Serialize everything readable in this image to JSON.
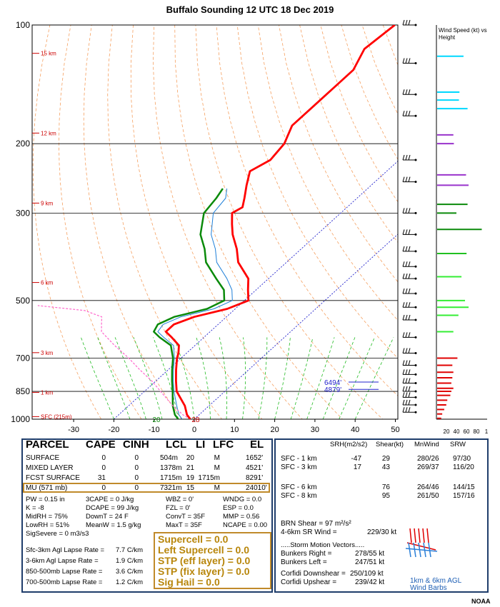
{
  "chart_data": {
    "type": "skew-t sounding",
    "title": "Buffalo Sounding  12 UTC  18 Dec 2019",
    "x_ticks": [
      -30,
      -20,
      -10,
      0,
      10,
      20,
      30,
      40,
      50
    ],
    "pressure_ticks": [
      100,
      200,
      300,
      500,
      700,
      850,
      1000
    ],
    "pressure_range": [
      1000,
      100
    ],
    "temperature_range": [
      -40,
      50
    ],
    "height_labels": [
      "15 km",
      "12 km",
      "9 km",
      "6 km",
      "3 km",
      "1 km",
      "SFC (215m)"
    ],
    "height_label_pressures": [
      118,
      188,
      283,
      450,
      678,
      855,
      985
    ],
    "temperature": [
      {
        "p": 1000,
        "t": -1
      },
      {
        "p": 975,
        "t": -3
      },
      {
        "p": 925,
        "t": -6
      },
      {
        "p": 850,
        "t": -12
      },
      {
        "p": 800,
        "t": -15
      },
      {
        "p": 750,
        "t": -18
      },
      {
        "p": 700,
        "t": -21
      },
      {
        "p": 680,
        "t": -22
      },
      {
        "p": 650,
        "t": -24
      },
      {
        "p": 620,
        "t": -28
      },
      {
        "p": 600,
        "t": -31
      },
      {
        "p": 575,
        "t": -31
      },
      {
        "p": 550,
        "t": -28
      },
      {
        "p": 525,
        "t": -22
      },
      {
        "p": 500,
        "t": -19
      },
      {
        "p": 470,
        "t": -22
      },
      {
        "p": 440,
        "t": -25
      },
      {
        "p": 400,
        "t": -32
      },
      {
        "p": 370,
        "t": -36
      },
      {
        "p": 340,
        "t": -41
      },
      {
        "p": 320,
        "t": -44
      },
      {
        "p": 300,
        "t": -47
      },
      {
        "p": 290,
        "t": -46
      },
      {
        "p": 275,
        "t": -48
      },
      {
        "p": 255,
        "t": -51
      },
      {
        "p": 235,
        "t": -54
      },
      {
        "p": 220,
        "t": -52
      },
      {
        "p": 200,
        "t": -53
      },
      {
        "p": 180,
        "t": -56
      },
      {
        "p": 160,
        "t": -56
      },
      {
        "p": 145,
        "t": -56
      },
      {
        "p": 130,
        "t": -56
      },
      {
        "p": 115,
        "t": -59
      },
      {
        "p": 100,
        "t": -58
      }
    ],
    "dewpoint": [
      {
        "p": 1000,
        "t": -4
      },
      {
        "p": 975,
        "t": -6
      },
      {
        "p": 925,
        "t": -9
      },
      {
        "p": 850,
        "t": -13
      },
      {
        "p": 800,
        "t": -16
      },
      {
        "p": 750,
        "t": -19
      },
      {
        "p": 700,
        "t": -22
      },
      {
        "p": 650,
        "t": -26
      },
      {
        "p": 620,
        "t": -31
      },
      {
        "p": 600,
        "t": -34
      },
      {
        "p": 575,
        "t": -35
      },
      {
        "p": 550,
        "t": -33
      },
      {
        "p": 525,
        "t": -27
      },
      {
        "p": 500,
        "t": -25
      },
      {
        "p": 470,
        "t": -28
      },
      {
        "p": 440,
        "t": -33
      },
      {
        "p": 400,
        "t": -40
      },
      {
        "p": 370,
        "t": -44
      },
      {
        "p": 340,
        "t": -49
      },
      {
        "p": 300,
        "t": -54
      },
      {
        "p": 275,
        "t": -55
      },
      {
        "p": 260,
        "t": -56
      }
    ],
    "parcel": [
      {
        "p": 1000,
        "t": -1
      },
      {
        "p": 975,
        "t": -4
      },
      {
        "p": 925,
        "t": -9
      },
      {
        "p": 850,
        "t": -16
      },
      {
        "p": 800,
        "t": -21
      },
      {
        "p": 750,
        "t": -27
      },
      {
        "p": 700,
        "t": -33
      },
      {
        "p": 650,
        "t": -40
      },
      {
        "p": 600,
        "t": -47
      },
      {
        "p": 575,
        "t": -49
      },
      {
        "p": 550,
        "t": -51
      },
      {
        "p": 530,
        "t": -57
      },
      {
        "p": 515,
        "t": -70
      }
    ],
    "surface_temp_label": "28",
    "surface_dew_label": "20",
    "storm_layers": [
      {
        "label": "6494'",
        "p": 805
      },
      {
        "label": "4879'",
        "p": 840
      }
    ],
    "wind_panel_title": "Wind Speed (kt) vs Height",
    "wind_axis_labels": [
      "20",
      "40",
      "60",
      "80",
      "1"
    ],
    "wind_profile": [
      {
        "p": 120,
        "v": 52,
        "c": "#00d8ff"
      },
      {
        "p": 148,
        "v": 44,
        "c": "#00d8ff"
      },
      {
        "p": 155,
        "v": 43,
        "c": "#00d8ff"
      },
      {
        "p": 163,
        "v": 60,
        "c": "#00d8ff"
      },
      {
        "p": 190,
        "v": 32,
        "c": "#9933cc"
      },
      {
        "p": 200,
        "v": 33,
        "c": "#9933cc"
      },
      {
        "p": 240,
        "v": 57,
        "c": "#9933cc"
      },
      {
        "p": 255,
        "v": 62,
        "c": "#9933cc"
      },
      {
        "p": 285,
        "v": 60,
        "c": "#0a8a0a"
      },
      {
        "p": 300,
        "v": 38,
        "c": "#0a8a0a"
      },
      {
        "p": 330,
        "v": 88,
        "c": "#0a8a0a"
      },
      {
        "p": 380,
        "v": 58,
        "c": "#20c020"
      },
      {
        "p": 435,
        "v": 48,
        "c": "#33ee33"
      },
      {
        "p": 500,
        "v": 55,
        "c": "#33ee33"
      },
      {
        "p": 520,
        "v": 62,
        "c": "#33ee33"
      },
      {
        "p": 545,
        "v": 42,
        "c": "#33ee33"
      },
      {
        "p": 600,
        "v": 32,
        "c": "#33ee33"
      },
      {
        "p": 700,
        "v": 40,
        "c": "#e00000"
      },
      {
        "p": 730,
        "v": 30,
        "c": "#e00000"
      },
      {
        "p": 760,
        "v": 32,
        "c": "#e00000"
      },
      {
        "p": 785,
        "v": 30,
        "c": "#e00000"
      },
      {
        "p": 810,
        "v": 28,
        "c": "#e00000"
      },
      {
        "p": 835,
        "v": 32,
        "c": "#e00000"
      },
      {
        "p": 850,
        "v": 28,
        "c": "#e00000"
      },
      {
        "p": 870,
        "v": 26,
        "c": "#e00000"
      },
      {
        "p": 895,
        "v": 20,
        "c": "#e00000"
      },
      {
        "p": 920,
        "v": 18,
        "c": "#e00000"
      },
      {
        "p": 945,
        "v": 14,
        "c": "#e00000"
      },
      {
        "p": 970,
        "v": 10,
        "c": "#e00000"
      },
      {
        "p": 995,
        "v": 8,
        "c": "#e00000"
      }
    ],
    "barb_pressures": [
      100,
      125,
      150,
      170,
      220,
      250,
      300,
      340,
      375,
      410,
      440,
      480,
      520,
      560,
      620,
      680,
      730,
      770,
      810,
      850,
      880,
      920,
      960
    ],
    "colors": {
      "temperature": "#ff0000",
      "dewpoint": "#0a8a0a",
      "parcel": "#ff66cc",
      "wetbulb": "#1e7fd8",
      "dry_adiabat": "#f5a060",
      "moist_adiabat": "#22bb22",
      "isotherm": "#2222cc",
      "storm": "#2222cc"
    }
  },
  "table": {
    "headers": [
      "PARCEL",
      "CAPE",
      "CINH",
      "LCL",
      "LI",
      "LFC",
      "EL"
    ],
    "rows": [
      [
        "SURFACE",
        "0",
        "0",
        "504m",
        "20",
        "M",
        "1652'"
      ],
      [
        "MIXED LAYER",
        "0",
        "0",
        "1378m",
        "21",
        "M",
        "4521'"
      ],
      [
        "FCST SURFACE",
        "31",
        "0",
        "1715m",
        "19",
        "1715m",
        "8291'"
      ],
      [
        "MU    (571 mb)",
        "0",
        "0",
        "7321m",
        "15",
        "M",
        "24010'"
      ]
    ]
  },
  "indices": {
    "col1": [
      "PW = 0.15 in",
      "K = -8",
      "MidRH = 75%",
      "LowRH = 51%",
      "SigSevere = 0 m3/s3"
    ],
    "col2": [
      "3CAPE = 0 J/kg",
      "DCAPE = 99 J/kg",
      "DownT = 24 F",
      "MeanW = 1.5 g/kg"
    ],
    "col3": [
      "WBZ = 0'",
      "FZL = 0'",
      "ConvT = 35F",
      "MaxT = 35F"
    ],
    "col4": [
      "WNDG = 0.0",
      "ESP = 0.0",
      "MMP = 0.56",
      "NCAPE = 0.00"
    ]
  },
  "lapse_rates": [
    [
      "Sfc-3km Agl Lapse Rate =",
      "7.7 C/km"
    ],
    [
      "3-6km Agl Lapse Rate =",
      "1.9 C/km"
    ],
    [
      "850-500mb Lapse Rate =",
      "3.6 C/km"
    ],
    [
      "700-500mb Lapse Rate =",
      "1.2 C/km"
    ]
  ],
  "severe": [
    "Supercell = 0.0",
    "Left Supercell = 0.0",
    "STP (eff layer) = 0.0",
    "STP (fix layer) = 0.0",
    "Sig Hail = 0.0"
  ],
  "kinematics": {
    "headers": [
      "SRH(m2/s2)",
      "Shear(kt)",
      "MnWind",
      "SRW"
    ],
    "rows": [
      [
        "SFC - 1 km",
        "-47",
        "29",
        "280/26",
        "97/30"
      ],
      [
        "SFC - 3 km",
        "17",
        "43",
        "269/37",
        "116/20"
      ],
      [
        "SFC - 6 km",
        "",
        "76",
        "264/46",
        "144/15"
      ],
      [
        "SFC - 8 km",
        "",
        "95",
        "261/50",
        "157/16"
      ]
    ],
    "brn_shear": "BRN Shear =  97 m²/s²",
    "sr_wind_label": "4-6km SR Wind =",
    "sr_wind_value": "229/30 kt",
    "storm_motion_title": ".....Storm Motion Vectors.....",
    "bunkers_right_label": "Bunkers Right =",
    "bunkers_right_value": "278/55 kt",
    "bunkers_left_label": "Bunkers Left =",
    "bunkers_left_value": "247/51 kt",
    "corfidi_down_label": "Corfidi Downshear =",
    "corfidi_down_value": "250/109 kt",
    "corfidi_up_label": "Corfidi Upshear =",
    "corfidi_up_value": "239/42 kt",
    "hodo_caption_1": "1km & 6km AGL",
    "hodo_caption_2": "Wind Barbs"
  },
  "credit": "NOAA"
}
